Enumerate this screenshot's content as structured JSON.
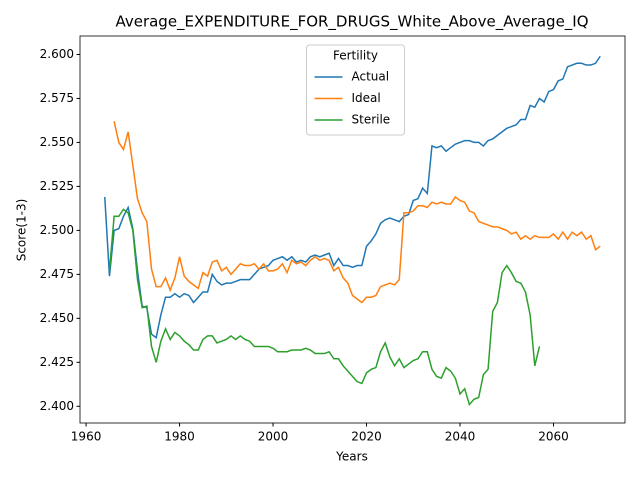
{
  "chart_data": {
    "type": "line",
    "title": "Average_EXPENDITURE_FOR_DRUGS_White_Above_Average_IQ",
    "xlabel": "Years",
    "ylabel": "Score(1-3)",
    "legend_title": "Fertility",
    "legend": "upper center",
    "grid": false,
    "x": [
      1964,
      1965,
      1966,
      1967,
      1968,
      1969,
      1970,
      1971,
      1972,
      1973,
      1974,
      1975,
      1976,
      1977,
      1978,
      1979,
      1980,
      1981,
      1982,
      1983,
      1984,
      1985,
      1986,
      1987,
      1988,
      1989,
      1990,
      1991,
      1992,
      1993,
      1994,
      1995,
      1996,
      1997,
      1998,
      1999,
      2000,
      2001,
      2002,
      2003,
      2004,
      2005,
      2006,
      2007,
      2008,
      2009,
      2010,
      2011,
      2012,
      2013,
      2014,
      2015,
      2016,
      2017,
      2018,
      2019,
      2020,
      2021,
      2022,
      2023,
      2024,
      2025,
      2026,
      2027,
      2028,
      2029,
      2030,
      2031,
      2032,
      2033,
      2034,
      2035,
      2036,
      2037,
      2038,
      2039,
      2040,
      2041,
      2042,
      2043,
      2044,
      2045,
      2046,
      2047,
      2048,
      2049,
      2050,
      2051,
      2052,
      2053,
      2054,
      2055,
      2056,
      2057,
      2058,
      2059,
      2060,
      2061,
      2062,
      2063,
      2064,
      2065,
      2066,
      2067,
      2068,
      2069,
      2070
    ],
    "series": [
      {
        "name": "Actual",
        "color": "#1f77b4",
        "values": [
          2.519,
          2.474,
          2.5,
          2.501,
          2.508,
          2.513,
          2.501,
          2.477,
          2.457,
          2.456,
          2.441,
          2.439,
          2.452,
          2.462,
          2.462,
          2.464,
          2.462,
          2.464,
          2.463,
          2.459,
          2.462,
          2.465,
          2.465,
          2.475,
          2.471,
          2.469,
          2.47,
          2.47,
          2.471,
          2.472,
          2.472,
          2.472,
          2.475,
          2.478,
          2.479,
          2.48,
          2.483,
          2.484,
          2.485,
          2.483,
          2.485,
          2.482,
          2.483,
          2.482,
          2.485,
          2.486,
          2.485,
          2.486,
          2.487,
          2.48,
          2.484,
          2.48,
          2.48,
          2.479,
          2.48,
          2.48,
          2.491,
          2.494,
          2.498,
          2.504,
          2.506,
          2.507,
          2.506,
          2.505,
          2.508,
          2.509,
          2.517,
          2.518,
          2.524,
          2.521,
          2.548,
          2.547,
          2.548,
          2.545,
          2.547,
          2.549,
          2.55,
          2.551,
          2.551,
          2.55,
          2.55,
          2.548,
          2.551,
          2.552,
          2.554,
          2.556,
          2.558,
          2.559,
          2.56,
          2.563,
          2.563,
          2.571,
          2.57,
          2.575,
          2.573,
          2.579,
          2.58,
          2.585,
          2.586,
          2.593,
          2.594,
          2.595,
          2.595,
          2.594,
          2.594,
          2.595,
          2.599
        ]
      },
      {
        "name": "Ideal",
        "color": "#ff7f0e",
        "values": [
          null,
          null,
          2.562,
          2.55,
          2.546,
          2.556,
          2.537,
          2.518,
          2.51,
          2.505,
          2.478,
          2.468,
          2.468,
          2.473,
          2.466,
          2.473,
          2.485,
          2.474,
          2.471,
          2.469,
          2.467,
          2.476,
          2.474,
          2.482,
          2.483,
          2.477,
          2.479,
          2.475,
          2.478,
          2.481,
          2.48,
          2.48,
          2.481,
          2.478,
          2.481,
          2.477,
          2.477,
          2.478,
          2.481,
          2.476,
          2.483,
          2.481,
          2.482,
          2.48,
          2.483,
          2.485,
          2.483,
          2.484,
          2.483,
          2.477,
          2.479,
          2.473,
          2.47,
          2.463,
          2.461,
          2.459,
          2.462,
          2.462,
          2.463,
          2.468,
          2.469,
          2.47,
          2.469,
          2.472,
          2.51,
          2.51,
          2.511,
          2.514,
          2.514,
          2.513,
          2.516,
          2.515,
          2.516,
          2.515,
          2.515,
          2.519,
          2.517,
          2.516,
          2.511,
          2.51,
          2.505,
          2.504,
          2.503,
          2.502,
          2.502,
          2.501,
          2.5,
          2.498,
          2.499,
          2.495,
          2.497,
          2.495,
          2.497,
          2.496,
          2.496,
          2.496,
          2.498,
          2.495,
          2.499,
          2.495,
          2.499,
          2.497,
          2.499,
          2.495,
          2.497,
          2.489,
          2.491
        ]
      },
      {
        "name": "Sterile",
        "color": "#2ca02c",
        "values": [
          null,
          2.477,
          2.508,
          2.508,
          2.512,
          2.51,
          2.5,
          2.472,
          2.456,
          2.457,
          2.434,
          2.425,
          2.437,
          2.444,
          2.438,
          2.442,
          2.44,
          2.437,
          2.435,
          2.432,
          2.432,
          2.438,
          2.44,
          2.44,
          2.436,
          2.437,
          2.438,
          2.44,
          2.438,
          2.44,
          2.438,
          2.437,
          2.434,
          2.434,
          2.434,
          2.434,
          2.433,
          2.431,
          2.431,
          2.431,
          2.432,
          2.432,
          2.432,
          2.433,
          2.432,
          2.43,
          2.43,
          2.43,
          2.431,
          2.427,
          2.427,
          2.423,
          2.42,
          2.417,
          2.414,
          2.413,
          2.419,
          2.421,
          2.422,
          2.431,
          2.436,
          2.428,
          2.423,
          2.427,
          2.422,
          2.424,
          2.426,
          2.427,
          2.431,
          2.431,
          2.421,
          2.417,
          2.416,
          2.422,
          2.42,
          2.416,
          2.407,
          2.41,
          2.401,
          2.404,
          2.405,
          2.418,
          2.421,
          2.454,
          2.459,
          2.476,
          2.48,
          2.476,
          2.471,
          2.47,
          2.465,
          2.452,
          2.423,
          2.434,
          null,
          null,
          null,
          null,
          null,
          null,
          null,
          null,
          null,
          null,
          null,
          null,
          null
        ]
      }
    ],
    "xlim": [
      1958.7,
      2075.3
    ],
    "xticks": [
      1960,
      1980,
      2000,
      2020,
      2040,
      2060
    ],
    "ylim": [
      2.3905,
      2.6105
    ],
    "yticks": [
      {
        "value": 2.4,
        "label": "2.400"
      },
      {
        "value": 2.425,
        "label": "2.425"
      },
      {
        "value": 2.45,
        "label": "2.450"
      },
      {
        "value": 2.475,
        "label": "2.475"
      },
      {
        "value": 2.5,
        "label": "2.500"
      },
      {
        "value": 2.525,
        "label": "2.525"
      },
      {
        "value": 2.55,
        "label": "2.550"
      },
      {
        "value": 2.575,
        "label": "2.575"
      },
      {
        "value": 2.6,
        "label": "2.600"
      }
    ]
  }
}
